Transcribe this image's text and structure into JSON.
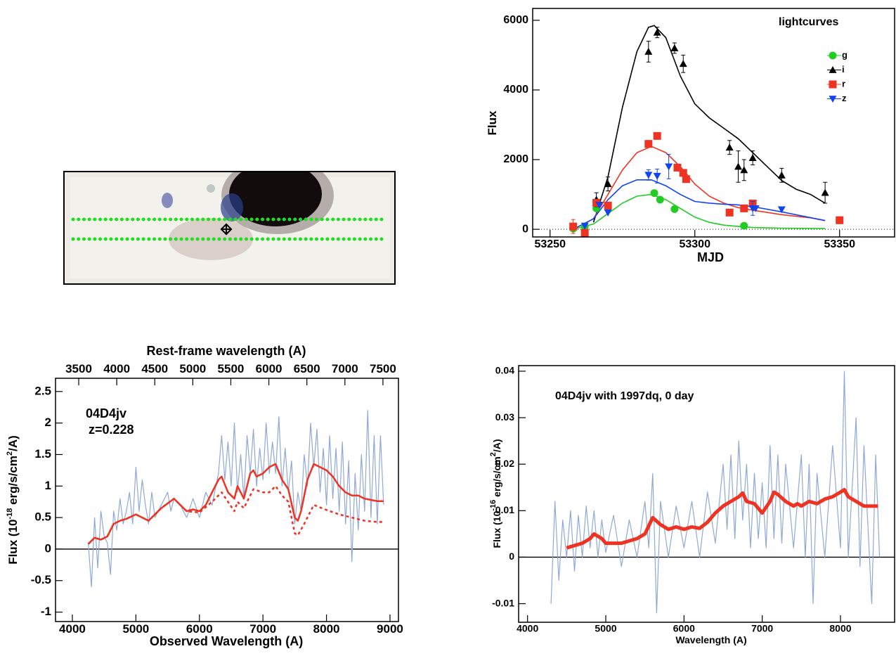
{
  "chart_data": [
    {
      "type": "scatter",
      "annotations": [
        "lightcurves"
      ],
      "xlabel": "MJD",
      "ylabel_parts": [
        "Flux"
      ],
      "xlim": [
        53244,
        53369
      ],
      "ylim": [
        -220,
        6340
      ],
      "xticks": [
        53250,
        53300,
        53350
      ],
      "yticks": [
        0,
        2000,
        4000,
        6000
      ],
      "hline": 0,
      "hline_dashed": true,
      "series": [
        {
          "name": "g",
          "color": "#22cc22",
          "marker": "circle",
          "x": [
            53258,
            53262,
            53266,
            53286,
            53288,
            53293,
            53317
          ],
          "values": [
            20,
            80,
            600,
            1040,
            850,
            580,
            100
          ],
          "errors": [
            null,
            null,
            null,
            null,
            null,
            null,
            null
          ]
        },
        {
          "name": "i",
          "color": "#000000",
          "marker": "triangle-up",
          "x": [
            53266,
            53270,
            53284,
            53287,
            53293,
            53296,
            53312,
            53315,
            53317,
            53320,
            53330,
            53345
          ],
          "values": [
            850,
            1300,
            5100,
            5650,
            5200,
            4750,
            2350,
            1800,
            1700,
            2050,
            1550,
            1050
          ],
          "errors": [
            200,
            200,
            300,
            150,
            150,
            250,
            200,
            450,
            300,
            200,
            200,
            300
          ]
        },
        {
          "name": "r",
          "color": "#ee3322",
          "marker": "square",
          "x": [
            53258,
            53262,
            53266,
            53270,
            53284,
            53287,
            53294,
            53296,
            53297,
            53312,
            53317,
            53320,
            53350
          ],
          "values": [
            80,
            -100,
            760,
            680,
            2450,
            2680,
            1770,
            1620,
            1440,
            480,
            600,
            740,
            260
          ],
          "errors": [
            200,
            null,
            null,
            null,
            100,
            null,
            null,
            null,
            null,
            null,
            null,
            100,
            100
          ]
        },
        {
          "name": "z",
          "color": "#1144ee",
          "marker": "triangle-down",
          "x": [
            53262,
            53267,
            53270,
            53284,
            53287,
            53291,
            53320,
            53321,
            53330
          ],
          "values": [
            100,
            700,
            480,
            1560,
            1530,
            1800,
            600,
            600,
            570
          ],
          "errors": [
            null,
            null,
            null,
            150,
            200,
            350,
            200,
            null,
            null
          ]
        }
      ],
      "fits": [
        {
          "color": "#000000",
          "x": [
            53265,
            53270,
            53275,
            53280,
            53284,
            53286,
            53290,
            53295,
            53300,
            53305,
            53310,
            53315,
            53320,
            53325,
            53330,
            53335,
            53340,
            53345
          ],
          "values": [
            200,
            1500,
            3500,
            5100,
            5800,
            5850,
            5500,
            4400,
            3600,
            3200,
            2900,
            2600,
            2200,
            1800,
            1400,
            1150,
            1000,
            750
          ]
        },
        {
          "color": "#ee3322",
          "x": [
            53258,
            53265,
            53270,
            53275,
            53280,
            53285,
            53290,
            53295,
            53300,
            53305,
            53310,
            53315,
            53320,
            53330,
            53340,
            53345
          ],
          "values": [
            0,
            300,
            1000,
            1700,
            2200,
            2380,
            2200,
            1800,
            1300,
            950,
            750,
            620,
            550,
            420,
            330,
            250
          ]
        },
        {
          "color": "#1144ee",
          "x": [
            53258,
            53265,
            53270,
            53275,
            53280,
            53285,
            53290,
            53295,
            53300,
            53305,
            53310,
            53315,
            53320,
            53330,
            53345
          ],
          "values": [
            0,
            300,
            850,
            1250,
            1420,
            1420,
            1250,
            1000,
            800,
            750,
            720,
            700,
            650,
            500,
            250
          ]
        },
        {
          "color": "#22cc22",
          "x": [
            53258,
            53265,
            53270,
            53275,
            53280,
            53285,
            53290,
            53295,
            53300,
            53305,
            53310,
            53315,
            53320,
            53330,
            53345
          ],
          "values": [
            0,
            150,
            450,
            750,
            950,
            1000,
            850,
            600,
            350,
            200,
            120,
            80,
            50,
            30,
            20
          ]
        }
      ]
    },
    {
      "type": "line",
      "annotations": [
        "04D4jv",
        "z=0.228"
      ],
      "xlabel": "Observed Wavelength (A)",
      "x2label": "Rest-frame wavelength (A)",
      "ylabel_parts": [
        "Flux (10",
        "-18",
        " erg/s/cm",
        "2",
        "/A)"
      ],
      "xlim": [
        3735,
        9133
      ],
      "x2lim": [
        3195,
        7704
      ],
      "ylim": [
        -1.15,
        2.71
      ],
      "xticks": [
        4000,
        5000,
        6000,
        7000,
        8000,
        9000
      ],
      "x2ticks": [
        3500,
        4000,
        4500,
        5000,
        5500,
        6000,
        6500,
        7000,
        7500
      ],
      "yticks": [
        -1,
        -0.5,
        0,
        0.5,
        1,
        1.5,
        2,
        2.5
      ],
      "hline": 0,
      "hline_dashed": false,
      "series": [
        {
          "color": "#8fa9d6",
          "line_width": 1.2,
          "x": [
            4250,
            4300,
            4350,
            4400,
            4450,
            4500,
            4550,
            4600,
            4650,
            4700,
            4750,
            4800,
            4850,
            4900,
            4950,
            5000,
            5050,
            5100,
            5150,
            5200,
            5250,
            5300,
            5400,
            5500,
            5550,
            5600,
            5700,
            5800,
            5900,
            6000,
            6100,
            6200,
            6300,
            6350,
            6400,
            6450,
            6500,
            6550,
            6600,
            6650,
            6700,
            6750,
            6800,
            6850,
            6900,
            6950,
            7000,
            7050,
            7100,
            7150,
            7200,
            7250,
            7300,
            7350,
            7400,
            7450,
            7500,
            7550,
            7600,
            7650,
            7700,
            7750,
            7800,
            7850,
            7900,
            7950,
            8000,
            8050,
            8100,
            8150,
            8200,
            8250,
            8300,
            8350,
            8400,
            8450,
            8500,
            8550,
            8600,
            8650,
            8700,
            8750,
            8800,
            8850,
            8900
          ],
          "values": [
            0.1,
            -0.6,
            0.5,
            -0.3,
            0.6,
            0.2,
            0.1,
            -0.4,
            0.6,
            0.3,
            0.8,
            0.4,
            0.6,
            0.9,
            0.4,
            1.3,
            0.6,
            1.1,
            0.7,
            0.4,
            0.9,
            0.5,
            0.7,
            0.9,
            0.6,
            0.8,
            0.7,
            0.5,
            0.8,
            0.5,
            0.9,
            0.7,
            1.2,
            1.8,
            1.1,
            1.7,
            1.0,
            2.0,
            0.9,
            1.5,
            0.8,
            1.8,
            1.2,
            1.9,
            1.0,
            1.6,
            1.1,
            2.0,
            1.2,
            1.7,
            1.2,
            2.1,
            1.0,
            1.6,
            0.9,
            1.4,
            0.4,
            0.9,
            0.6,
            1.5,
            1.0,
            2.0,
            1.3,
            1.9,
            0.9,
            1.6,
            0.7,
            1.8,
            0.8,
            1.6,
            0.6,
            1.7,
            0.4,
            1.4,
            -0.2,
            1.2,
            0.3,
            1.5,
            0.6,
            2.2,
            0.5,
            1.8,
            0.4,
            1.8,
            0.7
          ]
        },
        {
          "color": "#ee3322",
          "line_width": 2.5,
          "dashed": false,
          "x": [
            4250,
            4350,
            4450,
            4550,
            4650,
            4750,
            4850,
            5000,
            5200,
            5400,
            5600,
            5700,
            5800,
            5900,
            6000,
            6100,
            6200,
            6300,
            6350,
            6450,
            6550,
            6600,
            6700,
            6800,
            6850,
            6900,
            7000,
            7100,
            7200,
            7300,
            7400,
            7500,
            7550,
            7600,
            7700,
            7800,
            7900,
            8000,
            8100,
            8200,
            8300,
            8400,
            8500,
            8600,
            8700,
            8800,
            8900
          ],
          "values": [
            0.08,
            0.18,
            0.15,
            0.2,
            0.4,
            0.45,
            0.48,
            0.55,
            0.45,
            0.65,
            0.8,
            0.7,
            0.6,
            0.63,
            0.6,
            0.7,
            0.9,
            1.1,
            1.15,
            0.9,
            0.8,
            1.0,
            0.8,
            1.2,
            1.25,
            1.15,
            1.2,
            1.3,
            1.35,
            1.1,
            0.95,
            0.5,
            0.45,
            0.6,
            1.1,
            1.35,
            1.3,
            1.25,
            1.15,
            1.0,
            0.9,
            0.85,
            0.85,
            0.8,
            0.78,
            0.76,
            0.76
          ]
        },
        {
          "color": "#ee3322",
          "line_width": 2.5,
          "dashed": true,
          "x": [
            4250,
            4350,
            4450,
            4550,
            4650,
            4750,
            4850,
            5000,
            5200,
            5400,
            5600,
            5700,
            5800,
            6000,
            6200,
            6350,
            6450,
            6550,
            6600,
            6700,
            6850,
            7000,
            7100,
            7200,
            7300,
            7400,
            7500,
            7550,
            7650,
            7750,
            7800,
            8000,
            8200,
            8400,
            8600,
            8800,
            8900
          ],
          "values": [
            0.08,
            0.18,
            0.15,
            0.2,
            0.4,
            0.45,
            0.48,
            0.55,
            0.45,
            0.65,
            0.8,
            0.7,
            0.6,
            0.58,
            0.75,
            0.9,
            0.75,
            0.6,
            0.75,
            0.65,
            0.95,
            0.9,
            0.9,
            1.0,
            0.85,
            0.75,
            0.25,
            0.22,
            0.4,
            0.6,
            0.7,
            0.62,
            0.55,
            0.5,
            0.45,
            0.43,
            0.43
          ]
        }
      ]
    },
    {
      "type": "line",
      "annotations": [
        "04D4jv with 1997dq, 0 day"
      ],
      "xlabel": "Wavelength (A)",
      "ylabel_parts": [
        "Flux (10",
        "-16",
        " erg/s/cm",
        "2",
        "/A)"
      ],
      "xlim": [
        3886,
        8692
      ],
      "ylim": [
        -0.014,
        0.0412
      ],
      "xticks": [
        4000,
        5000,
        6000,
        7000,
        8000
      ],
      "yticks": [
        -0.01,
        0,
        0.01,
        0.02,
        0.03,
        0.04
      ],
      "hline": 0,
      "hline_dashed": false,
      "series": [
        {
          "color": "#8fa9d6",
          "line_width": 1.2,
          "x": [
            4300,
            4350,
            4400,
            4450,
            4500,
            4550,
            4600,
            4650,
            4700,
            4750,
            4800,
            4850,
            4900,
            4950,
            5000,
            5100,
            5200,
            5300,
            5400,
            5500,
            5550,
            5600,
            5650,
            5700,
            5800,
            5900,
            6000,
            6100,
            6200,
            6300,
            6400,
            6500,
            6550,
            6600,
            6650,
            6700,
            6750,
            6800,
            6850,
            6900,
            6950,
            7000,
            7050,
            7100,
            7150,
            7200,
            7250,
            7300,
            7400,
            7500,
            7550,
            7600,
            7650,
            7700,
            7800,
            7900,
            8000,
            8050,
            8100,
            8200,
            8250,
            8300,
            8400,
            8450,
            8500
          ],
          "values": [
            -0.01,
            0.012,
            -0.005,
            0.008,
            0.0,
            0.01,
            -0.003,
            0.009,
            0.0,
            0.011,
            0.002,
            0.01,
            0.0,
            0.008,
            0.001,
            0.009,
            -0.002,
            0.008,
            0.0,
            0.012,
            0.002,
            0.018,
            -0.012,
            0.012,
            0.0,
            0.011,
            0.002,
            0.012,
            0.0,
            0.014,
            0.003,
            0.02,
            0.006,
            0.022,
            0.004,
            0.025,
            0.008,
            0.02,
            0.002,
            0.018,
            0.004,
            0.016,
            0.002,
            0.024,
            0.004,
            0.022,
            0.003,
            0.02,
            0.002,
            0.022,
            0.0,
            0.02,
            -0.01,
            0.018,
            0.0,
            0.024,
            0.002,
            0.04,
            0.0,
            0.03,
            -0.002,
            0.024,
            -0.01,
            0.022,
            0.0
          ]
        },
        {
          "color": "#ee3322",
          "line_width": 5,
          "dashed": false,
          "x": [
            4500,
            4700,
            4800,
            4850,
            4950,
            5000,
            5200,
            5400,
            5500,
            5600,
            5700,
            5800,
            5900,
            6000,
            6100,
            6200,
            6300,
            6400,
            6500,
            6600,
            6700,
            6750,
            6800,
            6900,
            7000,
            7100,
            7150,
            7200,
            7300,
            7400,
            7450,
            7500,
            7600,
            7700,
            7800,
            7900,
            8000,
            8050,
            8100,
            8200,
            8300,
            8400,
            8480
          ],
          "values": [
            0.002,
            0.003,
            0.004,
            0.005,
            0.004,
            0.003,
            0.003,
            0.004,
            0.005,
            0.0085,
            0.007,
            0.006,
            0.0065,
            0.006,
            0.0065,
            0.0062,
            0.0075,
            0.0095,
            0.011,
            0.012,
            0.013,
            0.0138,
            0.012,
            0.0115,
            0.0095,
            0.012,
            0.014,
            0.0135,
            0.012,
            0.011,
            0.0115,
            0.011,
            0.012,
            0.0115,
            0.0125,
            0.013,
            0.014,
            0.0145,
            0.013,
            0.012,
            0.011,
            0.011,
            0.011
          ]
        }
      ]
    }
  ]
}
